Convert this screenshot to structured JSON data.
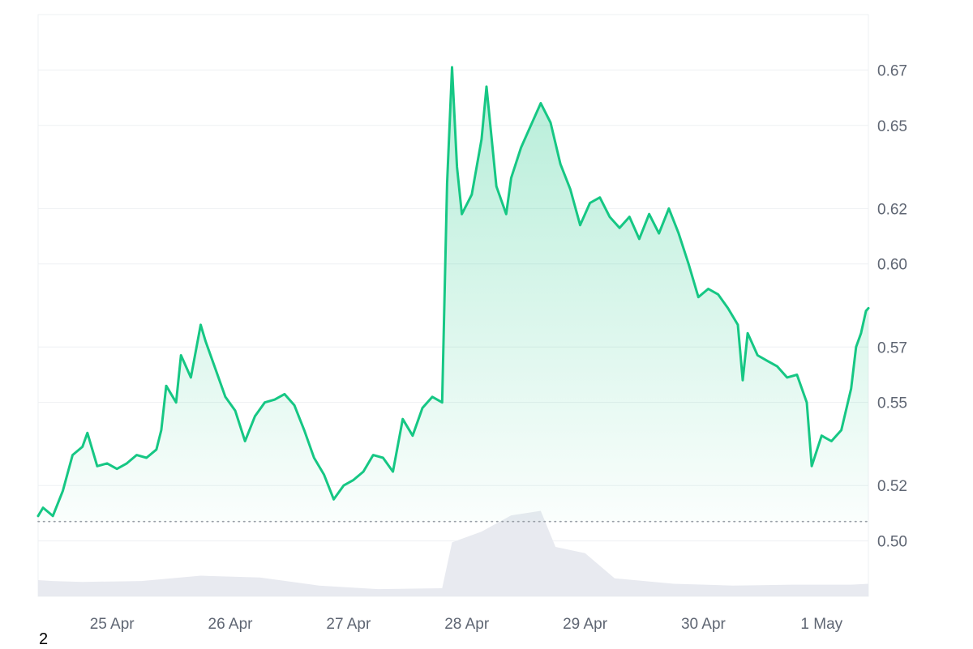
{
  "chart_data": {
    "type": "line",
    "y_ticks": [
      0.5,
      0.52,
      0.55,
      0.57,
      0.6,
      0.62,
      0.65,
      0.67
    ],
    "y_tick_labels": [
      "0.50",
      "0.52",
      "0.55",
      "0.57",
      "0.60",
      "0.62",
      "0.65",
      "0.67"
    ],
    "ylim": [
      0.48,
      0.69
    ],
    "x_ticks": [
      "25 Apr",
      "26 Apr",
      "27 Apr",
      "28 Apr",
      "29 Apr",
      "30 Apr",
      "1 May"
    ],
    "xlim": [
      "2024-04-24T09:00",
      "2024-05-01T09:30"
    ],
    "reference_line": 0.507,
    "grid": "horizontal",
    "legend": "none",
    "colors": {
      "line": "#16c784",
      "fill": "#16c784",
      "volume": "#e8eaf0",
      "grid": "#eef0f3",
      "reference": "#9aa0a8"
    },
    "series": [
      {
        "values": [
          [
            "2024-04-24T09:00",
            0.509
          ],
          [
            "2024-04-24T10:00",
            0.512
          ],
          [
            "2024-04-24T12:00",
            0.509
          ],
          [
            "2024-04-24T14:00",
            0.518
          ],
          [
            "2024-04-24T16:00",
            0.531
          ],
          [
            "2024-04-24T18:00",
            0.534
          ],
          [
            "2024-04-24T19:00",
            0.539
          ],
          [
            "2024-04-24T21:00",
            0.527
          ],
          [
            "2024-04-24T23:00",
            0.528
          ],
          [
            "2024-04-25T01:00",
            0.526
          ],
          [
            "2024-04-25T03:00",
            0.528
          ],
          [
            "2024-04-25T05:00",
            0.531
          ],
          [
            "2024-04-25T07:00",
            0.53
          ],
          [
            "2024-04-25T09:00",
            0.533
          ],
          [
            "2024-04-25T10:00",
            0.54
          ],
          [
            "2024-04-25T11:00",
            0.556
          ],
          [
            "2024-04-25T13:00",
            0.55
          ],
          [
            "2024-04-25T14:00",
            0.567
          ],
          [
            "2024-04-25T16:00",
            0.559
          ],
          [
            "2024-04-25T18:00",
            0.578
          ],
          [
            "2024-04-25T19:00",
            0.572
          ],
          [
            "2024-04-25T21:00",
            0.562
          ],
          [
            "2024-04-25T23:00",
            0.552
          ],
          [
            "2024-04-26T01:00",
            0.547
          ],
          [
            "2024-04-26T03:00",
            0.536
          ],
          [
            "2024-04-26T05:00",
            0.545
          ],
          [
            "2024-04-26T07:00",
            0.55
          ],
          [
            "2024-04-26T09:00",
            0.551
          ],
          [
            "2024-04-26T11:00",
            0.553
          ],
          [
            "2024-04-26T13:00",
            0.549
          ],
          [
            "2024-04-26T15:00",
            0.54
          ],
          [
            "2024-04-26T17:00",
            0.53
          ],
          [
            "2024-04-26T19:00",
            0.524
          ],
          [
            "2024-04-26T21:00",
            0.515
          ],
          [
            "2024-04-26T23:00",
            0.52
          ],
          [
            "2024-04-27T01:00",
            0.522
          ],
          [
            "2024-04-27T03:00",
            0.525
          ],
          [
            "2024-04-27T05:00",
            0.531
          ],
          [
            "2024-04-27T07:00",
            0.53
          ],
          [
            "2024-04-27T09:00",
            0.525
          ],
          [
            "2024-04-27T11:00",
            0.544
          ],
          [
            "2024-04-27T13:00",
            0.538
          ],
          [
            "2024-04-27T15:00",
            0.548
          ],
          [
            "2024-04-27T17:00",
            0.552
          ],
          [
            "2024-04-27T19:00",
            0.55
          ],
          [
            "2024-04-27T20:00",
            0.629
          ],
          [
            "2024-04-27T21:00",
            0.671
          ],
          [
            "2024-04-27T22:00",
            0.635
          ],
          [
            "2024-04-27T23:00",
            0.618
          ],
          [
            "2024-04-28T01:00",
            0.625
          ],
          [
            "2024-04-28T03:00",
            0.645
          ],
          [
            "2024-04-28T04:00",
            0.664
          ],
          [
            "2024-04-28T06:00",
            0.628
          ],
          [
            "2024-04-28T08:00",
            0.618
          ],
          [
            "2024-04-28T09:00",
            0.631
          ],
          [
            "2024-04-28T11:00",
            0.642
          ],
          [
            "2024-04-28T13:00",
            0.65
          ],
          [
            "2024-04-28T15:00",
            0.658
          ],
          [
            "2024-04-28T17:00",
            0.651
          ],
          [
            "2024-04-28T19:00",
            0.636
          ],
          [
            "2024-04-28T21:00",
            0.627
          ],
          [
            "2024-04-28T23:00",
            0.614
          ],
          [
            "2024-04-29T01:00",
            0.622
          ],
          [
            "2024-04-29T03:00",
            0.624
          ],
          [
            "2024-04-29T05:00",
            0.617
          ],
          [
            "2024-04-29T07:00",
            0.613
          ],
          [
            "2024-04-29T09:00",
            0.617
          ],
          [
            "2024-04-29T11:00",
            0.609
          ],
          [
            "2024-04-29T13:00",
            0.618
          ],
          [
            "2024-04-29T15:00",
            0.611
          ],
          [
            "2024-04-29T17:00",
            0.62
          ],
          [
            "2024-04-29T19:00",
            0.611
          ],
          [
            "2024-04-29T21:00",
            0.6
          ],
          [
            "2024-04-29T23:00",
            0.588
          ],
          [
            "2024-04-30T01:00",
            0.591
          ],
          [
            "2024-04-30T03:00",
            0.589
          ],
          [
            "2024-04-30T05:00",
            0.584
          ],
          [
            "2024-04-30T07:00",
            0.578
          ],
          [
            "2024-04-30T08:00",
            0.558
          ],
          [
            "2024-04-30T09:00",
            0.575
          ],
          [
            "2024-04-30T11:00",
            0.567
          ],
          [
            "2024-04-30T13:00",
            0.565
          ],
          [
            "2024-04-30T15:00",
            0.563
          ],
          [
            "2024-04-30T17:00",
            0.559
          ],
          [
            "2024-04-30T19:00",
            0.56
          ],
          [
            "2024-04-30T21:00",
            0.55
          ],
          [
            "2024-04-30T22:00",
            0.527
          ],
          [
            "2024-05-01T00:00",
            0.538
          ],
          [
            "2024-05-01T02:00",
            0.536
          ],
          [
            "2024-05-01T04:00",
            0.54
          ],
          [
            "2024-05-01T06:00",
            0.555
          ],
          [
            "2024-05-01T07:00",
            0.57
          ],
          [
            "2024-05-01T08:00",
            0.575
          ],
          [
            "2024-05-01T09:00",
            0.583
          ],
          [
            "2024-05-01T09:30",
            0.584
          ]
        ]
      }
    ],
    "volume": [
      [
        "2024-04-24T09:00",
        0.18
      ],
      [
        "2024-04-24T12:00",
        0.17
      ],
      [
        "2024-04-24T18:00",
        0.16
      ],
      [
        "2024-04-25T06:00",
        0.17
      ],
      [
        "2024-04-25T18:00",
        0.23
      ],
      [
        "2024-04-26T06:00",
        0.21
      ],
      [
        "2024-04-26T18:00",
        0.12
      ],
      [
        "2024-04-27T06:00",
        0.08
      ],
      [
        "2024-04-27T19:00",
        0.09
      ],
      [
        "2024-04-27T21:00",
        0.6
      ],
      [
        "2024-04-28T03:00",
        0.72
      ],
      [
        "2024-04-28T09:00",
        0.9
      ],
      [
        "2024-04-28T15:00",
        0.95
      ],
      [
        "2024-04-28T18:00",
        0.55
      ],
      [
        "2024-04-29T00:00",
        0.48
      ],
      [
        "2024-04-29T06:00",
        0.2
      ],
      [
        "2024-04-29T18:00",
        0.14
      ],
      [
        "2024-04-30T06:00",
        0.12
      ],
      [
        "2024-04-30T18:00",
        0.13
      ],
      [
        "2024-05-01T06:00",
        0.13
      ],
      [
        "2024-05-01T09:30",
        0.14
      ]
    ]
  },
  "footer": {
    "corner_text": "2"
  }
}
